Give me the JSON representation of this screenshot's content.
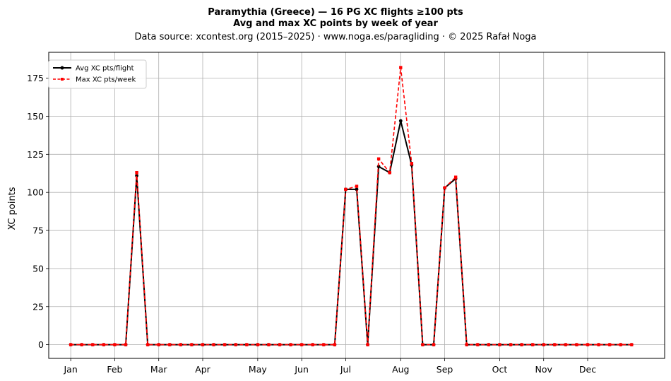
{
  "chart_data": {
    "type": "line",
    "title_line1": "Paramythia (Greece)  —  16 PG XC flights ≥100 pts",
    "title_line2": "Avg and max XC points by week of year",
    "subtitle": "Data source: xcontest.org (2015–2025)  ·  www.noga.es/paragliding  ·  © 2025 Rafał Noga",
    "ylabel": "XC points",
    "xlabel": "",
    "x_unit": "week of year",
    "x": [
      1,
      2,
      3,
      4,
      5,
      6,
      7,
      8,
      9,
      10,
      11,
      12,
      13,
      14,
      15,
      16,
      17,
      18,
      19,
      20,
      21,
      22,
      23,
      24,
      25,
      26,
      27,
      28,
      29,
      30,
      31,
      32,
      33,
      34,
      35,
      36,
      37,
      38,
      39,
      40,
      41,
      42,
      43,
      44,
      45,
      46,
      47,
      48,
      49,
      50,
      51,
      52
    ],
    "xlim": [
      -1,
      55
    ],
    "ylim": [
      -9,
      192
    ],
    "yticks": [
      0,
      25,
      50,
      75,
      100,
      125,
      150,
      175
    ],
    "month_ticks": [
      {
        "label": "Jan",
        "week": 1
      },
      {
        "label": "Feb",
        "week": 5
      },
      {
        "label": "Mar",
        "week": 9
      },
      {
        "label": "Apr",
        "week": 13
      },
      {
        "label": "May",
        "week": 18
      },
      {
        "label": "Jun",
        "week": 22
      },
      {
        "label": "Jul",
        "week": 26
      },
      {
        "label": "Aug",
        "week": 31
      },
      {
        "label": "Sep",
        "week": 35
      },
      {
        "label": "Oct",
        "week": 40
      },
      {
        "label": "Nov",
        "week": 44
      },
      {
        "label": "Dec",
        "week": 48
      }
    ],
    "grid": true,
    "legend_position": "top-left",
    "series": [
      {
        "name": "Avg XC pts/flight",
        "color": "#000000",
        "style": "solid",
        "marker": "circle",
        "values": [
          0,
          0,
          0,
          0,
          0,
          0,
          111,
          0,
          0,
          0,
          0,
          0,
          0,
          0,
          0,
          0,
          0,
          0,
          0,
          0,
          0,
          0,
          0,
          0,
          0,
          102,
          102,
          0,
          117,
          113,
          147,
          118,
          0,
          0,
          103,
          109,
          0,
          0,
          0,
          0,
          0,
          0,
          0,
          0,
          0,
          0,
          0,
          0,
          0,
          0,
          0,
          0
        ]
      },
      {
        "name": "Max XC pts/week",
        "color": "#ff0000",
        "style": "dashed",
        "marker": "square",
        "values": [
          0,
          0,
          0,
          0,
          0,
          0,
          113,
          0,
          0,
          0,
          0,
          0,
          0,
          0,
          0,
          0,
          0,
          0,
          0,
          0,
          0,
          0,
          0,
          0,
          0,
          102,
          104,
          0,
          122,
          113,
          182,
          119,
          0,
          0,
          103,
          110,
          0,
          0,
          0,
          0,
          0,
          0,
          0,
          0,
          0,
          0,
          0,
          0,
          0,
          0,
          0,
          0
        ]
      }
    ]
  }
}
